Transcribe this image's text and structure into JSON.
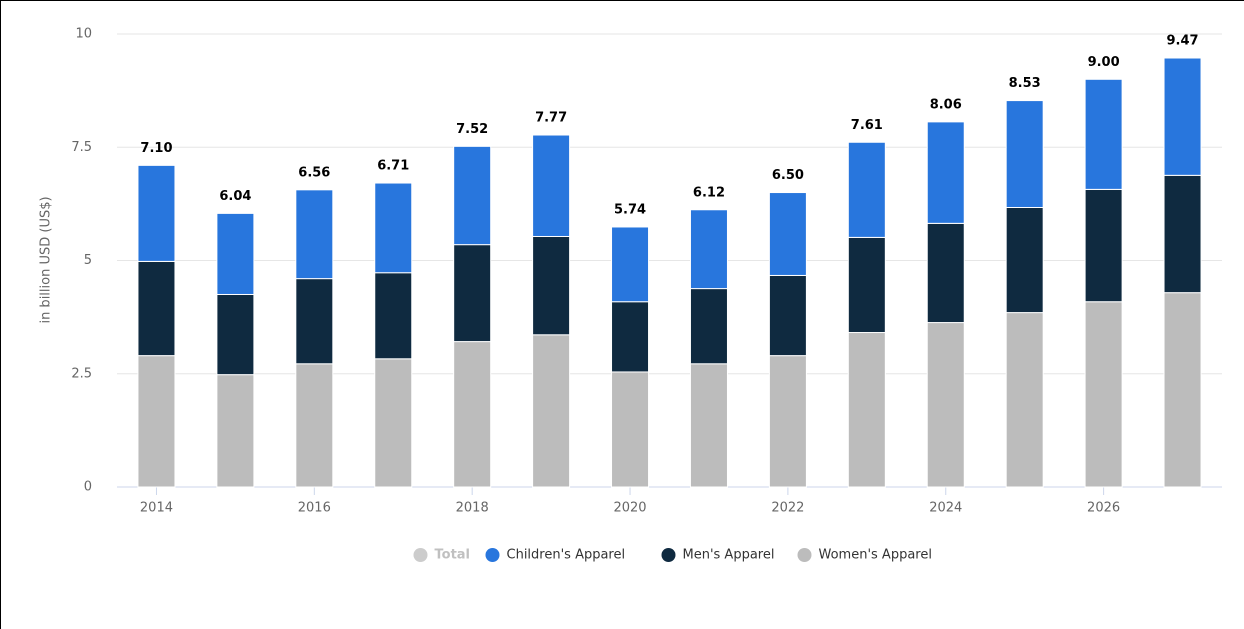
{
  "chart_data": {
    "type": "stacked_bar",
    "y_label": "in billion USD (US$)",
    "categories": [
      "2014",
      null,
      "2016",
      null,
      "2018",
      null,
      "2020",
      null,
      "2022",
      null,
      "2024",
      null,
      "2026",
      null
    ],
    "ylim": [
      0,
      10
    ],
    "yticks": [
      0,
      2.5,
      5,
      7.5,
      10
    ],
    "grid": true,
    "legend": "bottom",
    "series": [
      {
        "name": "Total",
        "color": "#cccccc",
        "hidden": true,
        "values": [
          7.1,
          6.04,
          6.56,
          6.71,
          7.52,
          7.77,
          5.74,
          6.12,
          6.5,
          7.61,
          8.06,
          8.53,
          9.0,
          9.47
        ],
        "value_labels": [
          "7.10",
          "6.04",
          "6.56",
          "6.71",
          "7.52",
          "7.77",
          "5.74",
          "6.12",
          "6.50",
          "7.61",
          "8.06",
          "8.53",
          "9.00",
          "9.47"
        ]
      },
      {
        "name": "Children's Apparel",
        "color": "#2876dd",
        "values": [
          2.12,
          1.79,
          1.96,
          1.98,
          2.17,
          2.24,
          1.65,
          1.74,
          1.83,
          2.1,
          2.24,
          2.36,
          2.43,
          2.59
        ]
      },
      {
        "name": "Men's Apparel",
        "color": "#0f2a40",
        "values": [
          2.08,
          1.77,
          1.88,
          1.9,
          2.14,
          2.17,
          1.55,
          1.66,
          1.77,
          2.1,
          2.19,
          2.32,
          2.48,
          2.59
        ]
      },
      {
        "name": "Women's Apparel",
        "color": "#bcbcbc",
        "values": [
          2.9,
          2.48,
          2.72,
          2.83,
          3.21,
          3.36,
          2.54,
          2.72,
          2.9,
          3.41,
          3.63,
          3.85,
          4.09,
          4.29
        ]
      }
    ]
  }
}
